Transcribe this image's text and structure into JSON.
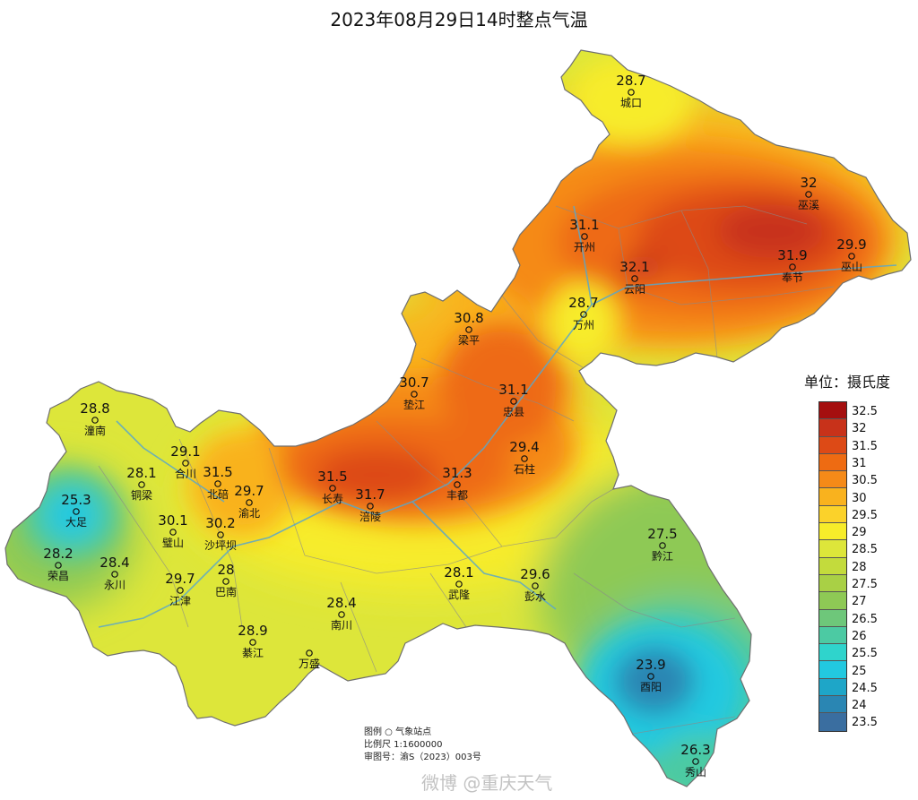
{
  "title": "2023年08月29日14时整点气温",
  "legend": {
    "title": "单位：摄氏度",
    "levels": [
      {
        "label": "32.5",
        "color": "#a50f0f"
      },
      {
        "label": "32",
        "color": "#c8321a"
      },
      {
        "label": "31.5",
        "color": "#dd4a16"
      },
      {
        "label": "31",
        "color": "#ee6b12"
      },
      {
        "label": "30.5",
        "color": "#f58a18"
      },
      {
        "label": "30",
        "color": "#f9b21e"
      },
      {
        "label": "29.5",
        "color": "#fbd22a"
      },
      {
        "label": "29",
        "color": "#f7ec2a"
      },
      {
        "label": "28.5",
        "color": "#dde63a"
      },
      {
        "label": "28",
        "color": "#c3db3c"
      },
      {
        "label": "27.5",
        "color": "#a9d045"
      },
      {
        "label": "27",
        "color": "#8ec955"
      },
      {
        "label": "26.5",
        "color": "#6ec77a"
      },
      {
        "label": "26",
        "color": "#4ccaa3"
      },
      {
        "label": "25.5",
        "color": "#2fd4cc"
      },
      {
        "label": "25",
        "color": "#22c9e0"
      },
      {
        "label": "24.5",
        "color": "#1ea6c8"
      },
      {
        "label": "24",
        "color": "#2a86b3"
      },
      {
        "label": "23.5",
        "color": "#3a6ea0"
      }
    ]
  },
  "stations": [
    {
      "name": "城口",
      "temp": "28.7"
    },
    {
      "name": "巫溪",
      "temp": "32"
    },
    {
      "name": "开州",
      "temp": "31.1"
    },
    {
      "name": "云阳",
      "temp": "32.1"
    },
    {
      "name": "奉节",
      "temp": "31.9"
    },
    {
      "name": "巫山",
      "temp": "29.9"
    },
    {
      "name": "万州",
      "temp": "28.7"
    },
    {
      "name": "梁平",
      "temp": "30.8"
    },
    {
      "name": "垫江",
      "temp": "30.7"
    },
    {
      "name": "忠县",
      "temp": "31.1"
    },
    {
      "name": "石柱",
      "temp": "29.4"
    },
    {
      "name": "潼南",
      "temp": "28.8"
    },
    {
      "name": "合川",
      "temp": "29.1"
    },
    {
      "name": "铜梁",
      "temp": "28.1"
    },
    {
      "name": "北碚",
      "temp": "31.5"
    },
    {
      "name": "渝北",
      "temp": "29.7"
    },
    {
      "name": "长寿",
      "temp": "31.5"
    },
    {
      "name": "涪陵",
      "temp": "31.7"
    },
    {
      "name": "丰都",
      "temp": "31.3"
    },
    {
      "name": "大足",
      "temp": "25.3"
    },
    {
      "name": "璧山",
      "temp": "30.1"
    },
    {
      "name": "沙坪坝",
      "temp": "30.2"
    },
    {
      "name": "荣昌",
      "temp": "28.2"
    },
    {
      "name": "永川",
      "temp": "28.4"
    },
    {
      "name": "江津",
      "temp": "29.7"
    },
    {
      "name": "巴南",
      "temp": "28"
    },
    {
      "name": "綦江",
      "temp": "28.9"
    },
    {
      "name": "南川",
      "temp": "28.4"
    },
    {
      "name": "万盛",
      "temp": ""
    },
    {
      "name": "武隆",
      "temp": "28.1"
    },
    {
      "name": "彭水",
      "temp": "29.6"
    },
    {
      "name": "黔江",
      "temp": "27.5"
    },
    {
      "name": "酉阳",
      "temp": "23.9"
    },
    {
      "name": "秀山",
      "temp": "26.3"
    }
  ],
  "notes": {
    "line1": "图例  ○  气象站点",
    "line2": "比例尺   1:1600000",
    "line3": "审图号：渝S（2023）003号"
  },
  "watermark": "微博 @重庆天气"
}
